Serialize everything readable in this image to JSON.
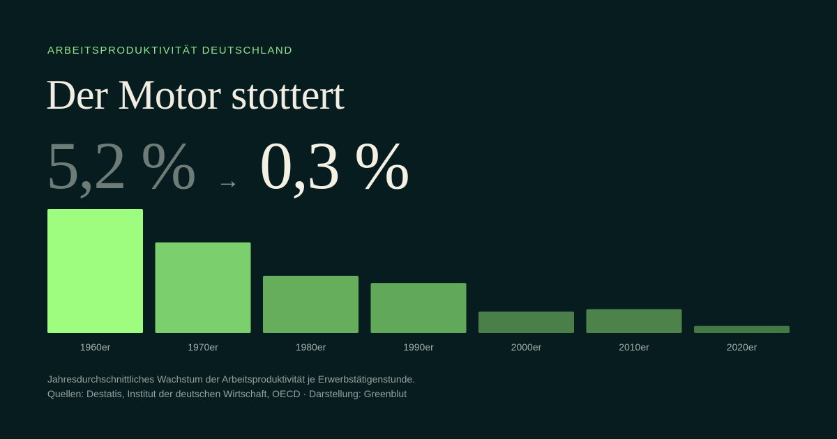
{
  "header": {
    "kicker": "ARBEITSPRODUKTIVITÄT DEUTSCHLAND",
    "title": "Der Motor stottert"
  },
  "stats": {
    "from": "5,2 %",
    "arrow": "→",
    "to": "0,3 %"
  },
  "chart_data": {
    "type": "bar",
    "categories": [
      "1960er",
      "1970er",
      "1980er",
      "1990er",
      "2000er",
      "2010er",
      "2020er"
    ],
    "values": [
      5.2,
      3.8,
      2.4,
      2.1,
      0.9,
      1.0,
      0.3
    ],
    "ylim": [
      0,
      5.2
    ],
    "grid": false,
    "colors": [
      "#9efc7f",
      "#7ccf6d",
      "#66ae5c",
      "#62a85a",
      "#4b7f49",
      "#4d834b",
      "#437843"
    ]
  },
  "footnote": {
    "line1": "Jahresdurchschnittliches Wachstum der Arbeitsproduktivität je Erwerbstätigenstunde.",
    "line2": "Quellen: Destatis, Institut der deutschen Wirtschaft, OECD · Darstellung: Greenblut"
  }
}
